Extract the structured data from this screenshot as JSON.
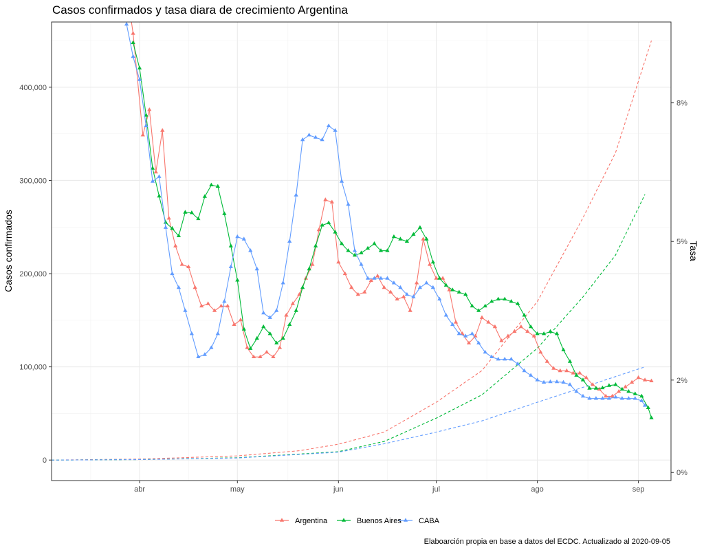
{
  "chart_data": {
    "type": "line",
    "title": "Casos confirmados y tasa diara de crecimiento Argentina",
    "ylabel": "Casos confirmados",
    "y2label": "Tasa",
    "caption": "Elaboarción propia en base a datos del ECDC. Actualizado al  2020-09-05",
    "x_start_date": "2020-03-05",
    "x_end_date": "2020-09-11",
    "x_tick_dates": [
      "2020-04-01",
      "2020-05-01",
      "2020-06-01",
      "2020-07-01",
      "2020-08-01",
      "2020-09-01"
    ],
    "x_tick_labels": [
      "abr",
      "may",
      "jun",
      "jul",
      "ago",
      "sep"
    ],
    "ylim": [
      -22000,
      470000
    ],
    "y_ticks": [
      0,
      100000,
      200000,
      300000,
      400000
    ],
    "y_tick_labels": [
      "0",
      "100,000",
      "200,000",
      "300,000",
      "400,000"
    ],
    "y2lim": [
      -0.00175,
      0.0975
    ],
    "y2_ticks": [
      0,
      0.02,
      0.05,
      0.08
    ],
    "y2_tick_labels": [
      "0%",
      "2%",
      "5%",
      "8%"
    ],
    "grid": true,
    "legend_position": "bottom",
    "colors": {
      "Argentina": "#F8766D",
      "Buenos Aires": "#00BA38",
      "CABA": "#619CFF"
    },
    "cases_series": [
      {
        "name": "Argentina",
        "line": "dashed",
        "axis": "left",
        "x": [
          "2020-03-05",
          "2020-04-01",
          "2020-05-01",
          "2020-05-20",
          "2020-06-01",
          "2020-06-15",
          "2020-07-01",
          "2020-07-15",
          "2020-08-01",
          "2020-08-15",
          "2020-08-25",
          "2020-09-05"
        ],
        "values": [
          0,
          1000,
          4500,
          10000,
          17000,
          30000,
          62000,
          96000,
          170000,
          260000,
          330000,
          450000
        ]
      },
      {
        "name": "Buenos Aires",
        "line": "dashed",
        "axis": "left",
        "x": [
          "2020-03-05",
          "2020-04-01",
          "2020-05-01",
          "2020-06-01",
          "2020-06-15",
          "2020-07-01",
          "2020-07-15",
          "2020-08-01",
          "2020-08-15",
          "2020-08-25",
          "2020-09-03"
        ],
        "values": [
          0,
          500,
          2500,
          9000,
          20000,
          45000,
          70000,
          120000,
          175000,
          220000,
          285000
        ]
      },
      {
        "name": "CABA",
        "line": "dashed",
        "axis": "left",
        "x": [
          "2020-03-05",
          "2020-04-01",
          "2020-05-01",
          "2020-06-01",
          "2020-06-15",
          "2020-07-01",
          "2020-07-15",
          "2020-08-01",
          "2020-08-15",
          "2020-09-03"
        ],
        "values": [
          0,
          500,
          2200,
          8500,
          17500,
          30000,
          42000,
          62000,
          78000,
          100000
        ]
      }
    ],
    "rate_series": [
      {
        "name": "Argentina",
        "line": "solid",
        "marker": "triangle",
        "axis": "right",
        "x": [
          "2020-03-28",
          "2020-03-30",
          "2020-04-02",
          "2020-04-04",
          "2020-04-06",
          "2020-04-08",
          "2020-04-10",
          "2020-04-12",
          "2020-04-14",
          "2020-04-16",
          "2020-04-18",
          "2020-04-20",
          "2020-04-22",
          "2020-04-24",
          "2020-04-26",
          "2020-04-28",
          "2020-04-30",
          "2020-05-02",
          "2020-05-04",
          "2020-05-06",
          "2020-05-08",
          "2020-05-10",
          "2020-05-12",
          "2020-05-14",
          "2020-05-16",
          "2020-05-18",
          "2020-05-20",
          "2020-05-22",
          "2020-05-24",
          "2020-05-26",
          "2020-05-28",
          "2020-05-30",
          "2020-06-01",
          "2020-06-03",
          "2020-06-05",
          "2020-06-07",
          "2020-06-09",
          "2020-06-11",
          "2020-06-13",
          "2020-06-15",
          "2020-06-17",
          "2020-06-19",
          "2020-06-21",
          "2020-06-23",
          "2020-06-25",
          "2020-06-27",
          "2020-06-29",
          "2020-07-01",
          "2020-07-03",
          "2020-07-05",
          "2020-07-07",
          "2020-07-09",
          "2020-07-11",
          "2020-07-13",
          "2020-07-15",
          "2020-07-17",
          "2020-07-19",
          "2020-07-21",
          "2020-07-23",
          "2020-07-25",
          "2020-07-27",
          "2020-07-29",
          "2020-07-31",
          "2020-08-02",
          "2020-08-04",
          "2020-08-06",
          "2020-08-08",
          "2020-08-10",
          "2020-08-12",
          "2020-08-14",
          "2020-08-16",
          "2020-08-18",
          "2020-08-20",
          "2020-08-22",
          "2020-08-24",
          "2020-08-26",
          "2020-08-28",
          "2020-08-30",
          "2020-09-01",
          "2020-09-03",
          "2020-09-05"
        ],
        "values": [
          0.105,
          0.095,
          0.073,
          0.0785,
          0.065,
          0.074,
          0.055,
          0.049,
          0.045,
          0.0445,
          0.04,
          0.036,
          0.0365,
          0.035,
          0.036,
          0.036,
          0.032,
          0.033,
          0.027,
          0.025,
          0.025,
          0.026,
          0.025,
          0.027,
          0.034,
          0.0365,
          0.0385,
          0.042,
          0.045,
          0.0525,
          0.059,
          0.0585,
          0.0455,
          0.043,
          0.04,
          0.0385,
          0.039,
          0.0415,
          0.0425,
          0.04,
          0.039,
          0.0375,
          0.038,
          0.035,
          0.041,
          0.0505,
          0.045,
          0.042,
          0.042,
          0.0395,
          0.0325,
          0.03,
          0.028,
          0.0295,
          0.0335,
          0.0325,
          0.0315,
          0.0285,
          0.0295,
          0.0305,
          0.0315,
          0.0305,
          0.0295,
          0.026,
          0.024,
          0.0225,
          0.022,
          0.022,
          0.0215,
          0.0215,
          0.0205,
          0.019,
          0.018,
          0.0165,
          0.0165,
          0.0175,
          0.0185,
          0.0195,
          0.0205,
          0.02,
          0.0198
        ]
      },
      {
        "name": "Buenos Aires",
        "line": "solid",
        "marker": "triangle",
        "axis": "right",
        "x": [
          "2020-03-30",
          "2020-04-01",
          "2020-04-03",
          "2020-04-05",
          "2020-04-07",
          "2020-04-09",
          "2020-04-11",
          "2020-04-13",
          "2020-04-15",
          "2020-04-17",
          "2020-04-19",
          "2020-04-21",
          "2020-04-23",
          "2020-04-25",
          "2020-04-27",
          "2020-04-29",
          "2020-05-01",
          "2020-05-03",
          "2020-05-05",
          "2020-05-07",
          "2020-05-09",
          "2020-05-11",
          "2020-05-13",
          "2020-05-15",
          "2020-05-17",
          "2020-05-19",
          "2020-05-21",
          "2020-05-23",
          "2020-05-25",
          "2020-05-27",
          "2020-05-29",
          "2020-05-31",
          "2020-06-02",
          "2020-06-04",
          "2020-06-06",
          "2020-06-08",
          "2020-06-10",
          "2020-06-12",
          "2020-06-14",
          "2020-06-16",
          "2020-06-18",
          "2020-06-20",
          "2020-06-22",
          "2020-06-24",
          "2020-06-26",
          "2020-06-28",
          "2020-06-30",
          "2020-07-02",
          "2020-07-04",
          "2020-07-06",
          "2020-07-08",
          "2020-07-10",
          "2020-07-12",
          "2020-07-14",
          "2020-07-16",
          "2020-07-18",
          "2020-07-20",
          "2020-07-22",
          "2020-07-24",
          "2020-07-26",
          "2020-07-28",
          "2020-07-30",
          "2020-08-01",
          "2020-08-03",
          "2020-08-05",
          "2020-08-07",
          "2020-08-09",
          "2020-08-11",
          "2020-08-13",
          "2020-08-15",
          "2020-08-17",
          "2020-08-19",
          "2020-08-21",
          "2020-08-23",
          "2020-08-25",
          "2020-08-27",
          "2020-08-29",
          "2020-08-31",
          "2020-09-02",
          "2020-09-04",
          "2020-09-05"
        ],
        "values": [
          0.093,
          0.0875,
          0.0773,
          0.0658,
          0.0598,
          0.0541,
          0.0528,
          0.0512,
          0.0563,
          0.0562,
          0.0549,
          0.0597,
          0.0622,
          0.0619,
          0.056,
          0.049,
          0.0416,
          0.031,
          0.0268,
          0.029,
          0.0315,
          0.03,
          0.028,
          0.029,
          0.032,
          0.035,
          0.04,
          0.044,
          0.049,
          0.0535,
          0.054,
          0.052,
          0.0495,
          0.048,
          0.047,
          0.0475,
          0.0485,
          0.0495,
          0.048,
          0.048,
          0.051,
          0.0505,
          0.05,
          0.0515,
          0.053,
          0.0505,
          0.0455,
          0.042,
          0.0405,
          0.0395,
          0.039,
          0.0385,
          0.036,
          0.035,
          0.036,
          0.037,
          0.0375,
          0.0375,
          0.037,
          0.0365,
          0.034,
          0.0315,
          0.03,
          0.03,
          0.0305,
          0.03,
          0.0265,
          0.024,
          0.021,
          0.02,
          0.0182,
          0.0182,
          0.0183,
          0.0188,
          0.019,
          0.018,
          0.0175,
          0.017,
          0.0165,
          0.014,
          0.0118
        ]
      },
      {
        "name": "CABA",
        "line": "solid",
        "marker": "triangle",
        "axis": "right",
        "x": [
          "2020-03-28",
          "2020-03-30",
          "2020-04-01",
          "2020-04-03",
          "2020-04-05",
          "2020-04-07",
          "2020-04-09",
          "2020-04-11",
          "2020-04-13",
          "2020-04-15",
          "2020-04-17",
          "2020-04-19",
          "2020-04-21",
          "2020-04-23",
          "2020-04-25",
          "2020-04-27",
          "2020-04-29",
          "2020-05-01",
          "2020-05-03",
          "2020-05-05",
          "2020-05-07",
          "2020-05-09",
          "2020-05-11",
          "2020-05-13",
          "2020-05-15",
          "2020-05-17",
          "2020-05-19",
          "2020-05-21",
          "2020-05-23",
          "2020-05-25",
          "2020-05-27",
          "2020-05-29",
          "2020-05-31",
          "2020-06-02",
          "2020-06-04",
          "2020-06-06",
          "2020-06-08",
          "2020-06-10",
          "2020-06-12",
          "2020-06-14",
          "2020-06-16",
          "2020-06-18",
          "2020-06-20",
          "2020-06-22",
          "2020-06-24",
          "2020-06-26",
          "2020-06-28",
          "2020-06-30",
          "2020-07-02",
          "2020-07-04",
          "2020-07-06",
          "2020-07-08",
          "2020-07-10",
          "2020-07-12",
          "2020-07-14",
          "2020-07-16",
          "2020-07-18",
          "2020-07-20",
          "2020-07-22",
          "2020-07-24",
          "2020-07-26",
          "2020-07-28",
          "2020-07-30",
          "2020-08-01",
          "2020-08-03",
          "2020-08-05",
          "2020-08-07",
          "2020-08-09",
          "2020-08-11",
          "2020-08-13",
          "2020-08-15",
          "2020-08-17",
          "2020-08-19",
          "2020-08-21",
          "2020-08-23",
          "2020-08-25",
          "2020-08-27",
          "2020-08-29",
          "2020-08-31",
          "2020-09-02",
          "2020-09-03"
        ],
        "values": [
          0.097,
          0.09,
          0.085,
          0.075,
          0.063,
          0.064,
          0.053,
          0.043,
          0.04,
          0.035,
          0.03,
          0.025,
          0.0255,
          0.027,
          0.03,
          0.037,
          0.0445,
          0.051,
          0.0505,
          0.048,
          0.044,
          0.0345,
          0.0335,
          0.035,
          0.041,
          0.05,
          0.06,
          0.072,
          0.073,
          0.0725,
          0.072,
          0.075,
          0.074,
          0.063,
          0.058,
          0.048,
          0.045,
          0.042,
          0.042,
          0.042,
          0.042,
          0.041,
          0.04,
          0.0385,
          0.038,
          0.04,
          0.041,
          0.04,
          0.0375,
          0.034,
          0.032,
          0.03,
          0.0295,
          0.03,
          0.028,
          0.026,
          0.025,
          0.0245,
          0.0245,
          0.0245,
          0.0235,
          0.022,
          0.021,
          0.02,
          0.0195,
          0.0196,
          0.0196,
          0.0195,
          0.019,
          0.0175,
          0.0165,
          0.016,
          0.016,
          0.016,
          0.016,
          0.0163,
          0.016,
          0.016,
          0.016,
          0.0155,
          0.0145
        ]
      }
    ]
  }
}
